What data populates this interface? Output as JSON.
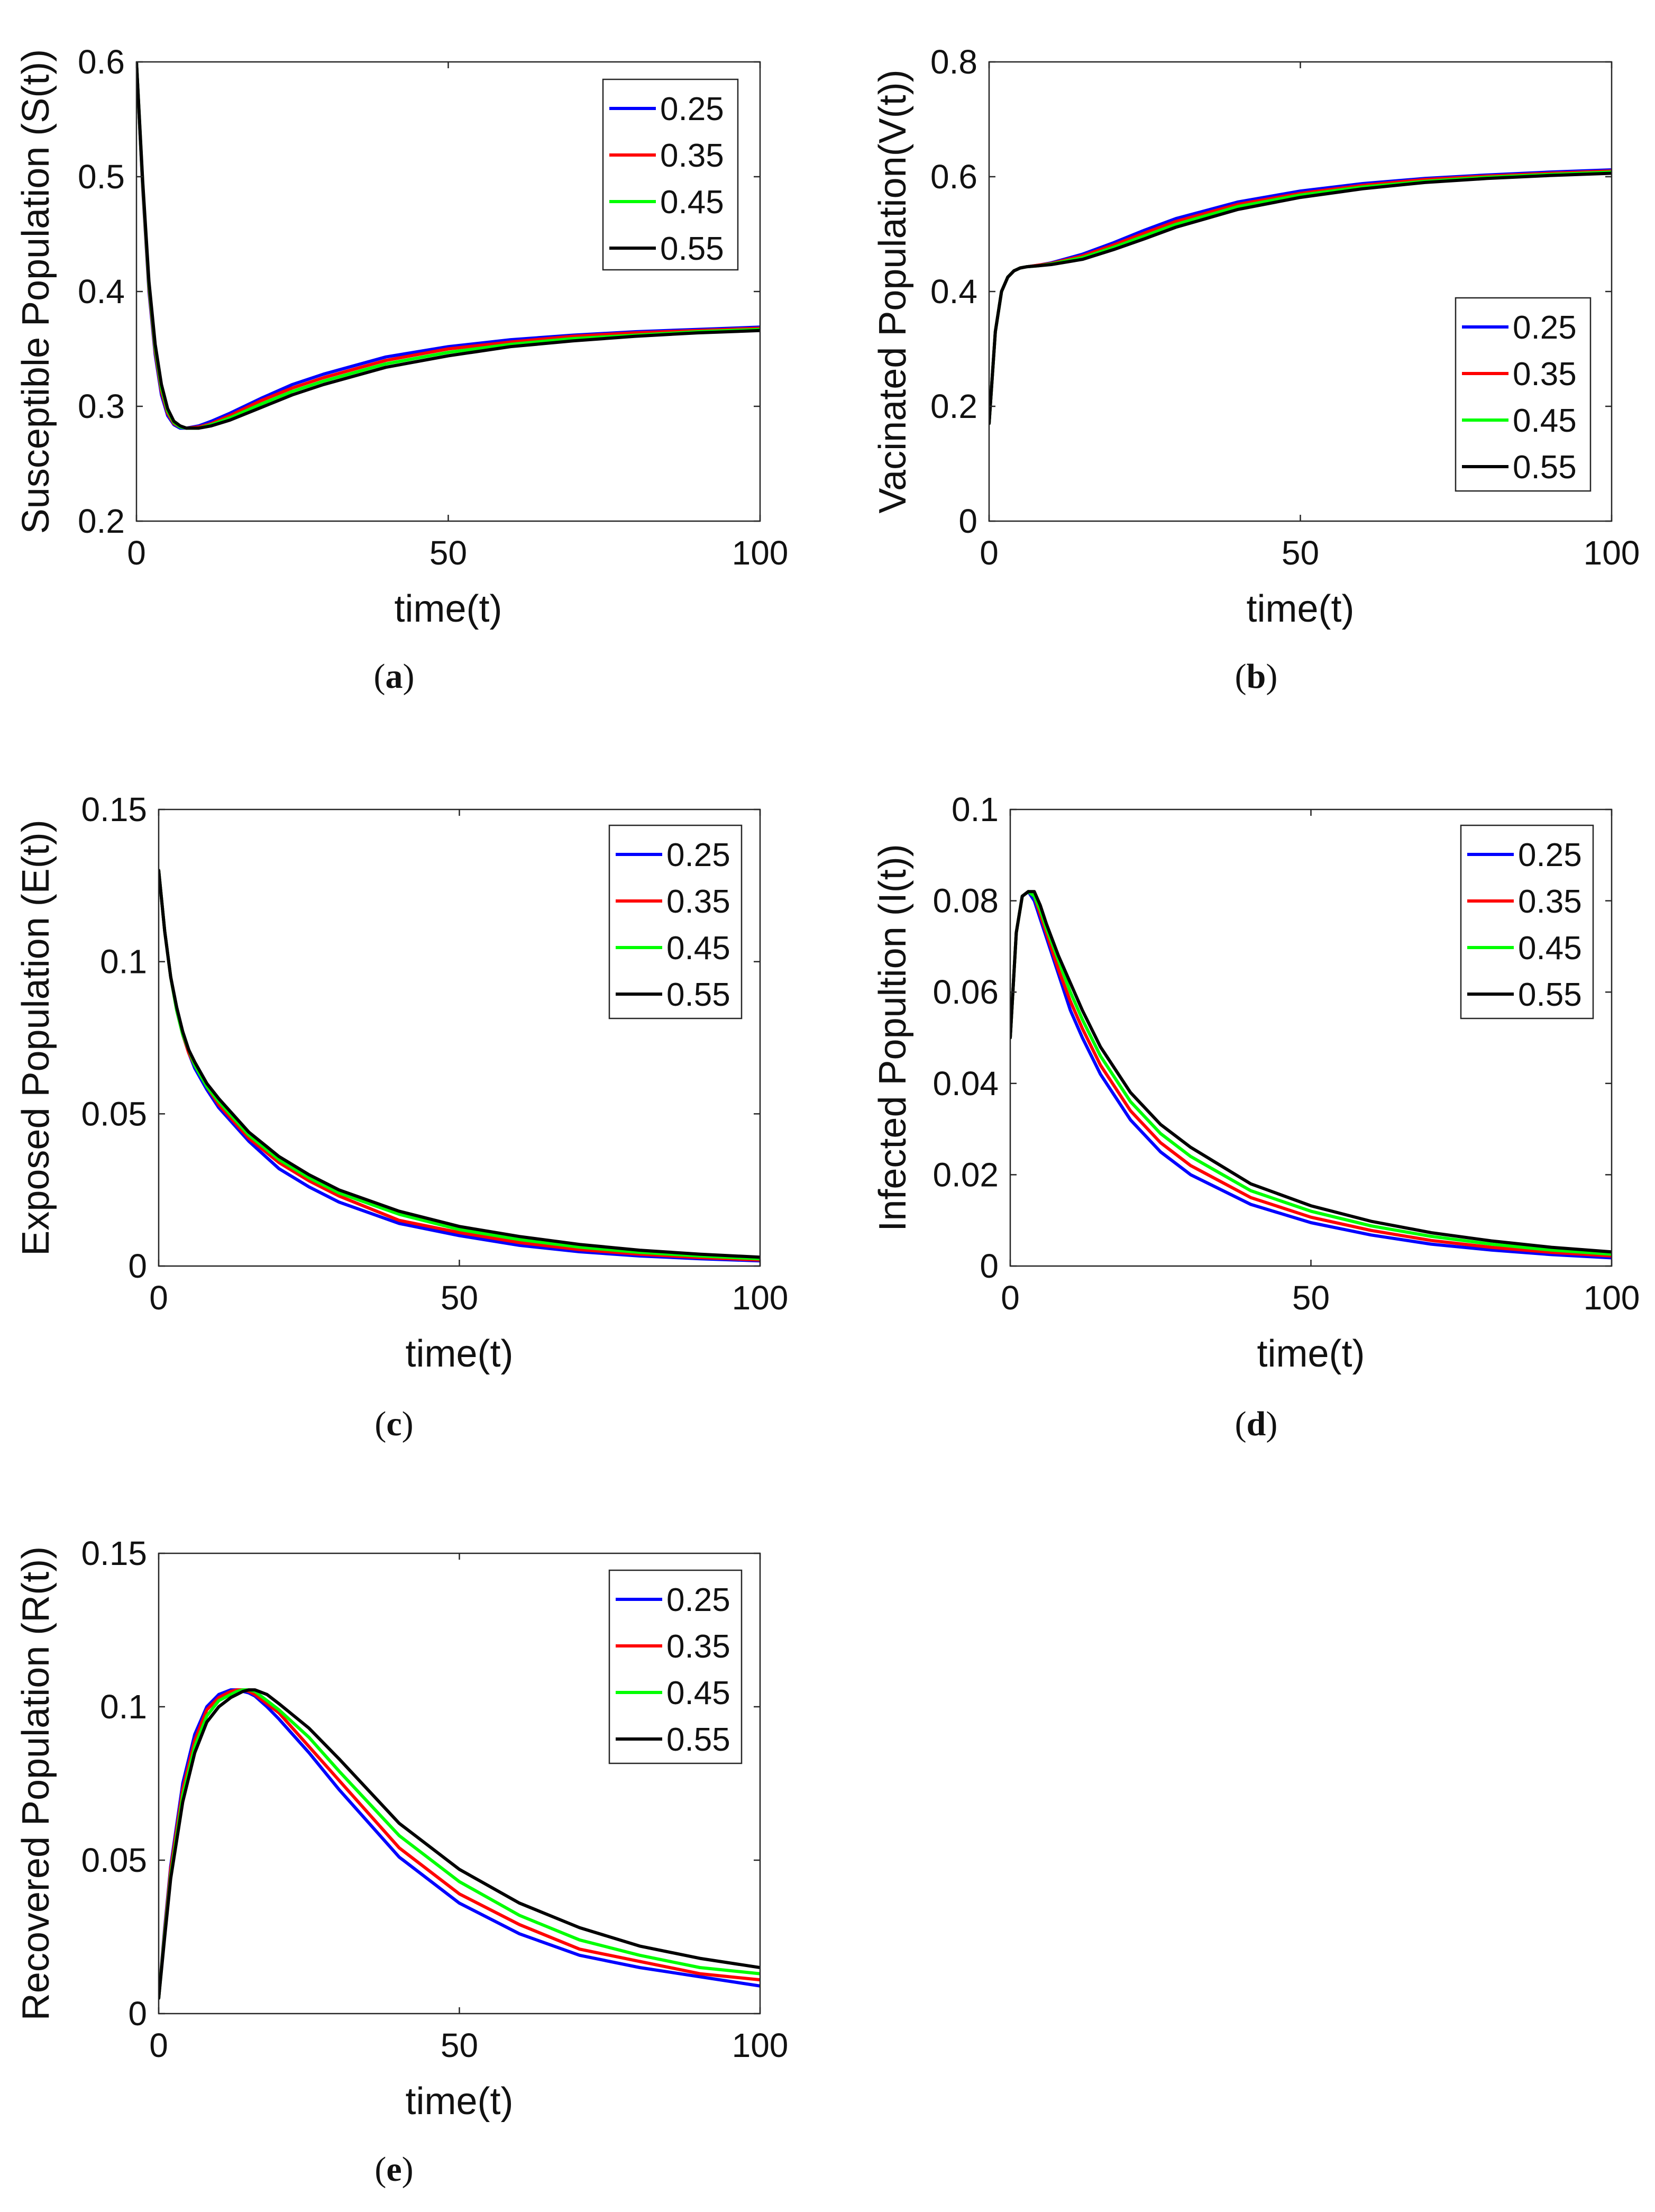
{
  "colors": {
    "blue": "#0000ff",
    "red": "#ff0000",
    "green": "#00ff00",
    "black": "#000000",
    "axis": "#262626"
  },
  "legend_labels": [
    "0.25",
    "0.35",
    "0.45",
    "0.55"
  ],
  "chart_data": [
    {
      "id": "a",
      "caption": "(a)",
      "type": "line",
      "title": "",
      "xlabel": "time(t)",
      "ylabel": "Susceptible Population (S(t))",
      "xlim": [
        0,
        100
      ],
      "ylim": [
        0.2,
        0.6
      ],
      "xticks": [
        0,
        50,
        100
      ],
      "xtick_labels": [
        "0",
        "50",
        "100"
      ],
      "yticks": [
        0.2,
        0.3,
        0.4,
        0.5,
        0.6
      ],
      "ytick_labels": [
        "0.2",
        "0.3",
        "0.4",
        "0.5",
        "0.6"
      ],
      "grid": false,
      "legend_position": "top-right",
      "x": [
        0,
        1,
        2,
        3,
        4,
        5,
        6,
        7,
        8,
        10,
        12,
        15,
        20,
        25,
        30,
        40,
        50,
        60,
        70,
        80,
        90,
        100
      ],
      "series": [
        {
          "name": "0.25",
          "values": [
            0.6,
            0.49,
            0.4,
            0.345,
            0.31,
            0.292,
            0.284,
            0.281,
            0.281,
            0.283,
            0.287,
            0.294,
            0.307,
            0.319,
            0.328,
            0.343,
            0.352,
            0.358,
            0.362,
            0.365,
            0.367,
            0.369
          ]
        },
        {
          "name": "0.35",
          "values": [
            0.6,
            0.492,
            0.403,
            0.348,
            0.313,
            0.294,
            0.285,
            0.282,
            0.281,
            0.282,
            0.285,
            0.292,
            0.305,
            0.316,
            0.325,
            0.34,
            0.35,
            0.356,
            0.361,
            0.364,
            0.366,
            0.368
          ]
        },
        {
          "name": "0.45",
          "values": [
            0.6,
            0.494,
            0.406,
            0.351,
            0.316,
            0.296,
            0.286,
            0.282,
            0.281,
            0.281,
            0.284,
            0.29,
            0.302,
            0.313,
            0.322,
            0.337,
            0.347,
            0.354,
            0.359,
            0.362,
            0.365,
            0.367
          ]
        },
        {
          "name": "0.55",
          "values": [
            0.6,
            0.496,
            0.409,
            0.354,
            0.319,
            0.298,
            0.287,
            0.283,
            0.281,
            0.281,
            0.283,
            0.288,
            0.299,
            0.31,
            0.319,
            0.334,
            0.344,
            0.352,
            0.357,
            0.361,
            0.364,
            0.366
          ]
        }
      ]
    },
    {
      "id": "b",
      "caption": "(b)",
      "type": "line",
      "title": "",
      "xlabel": "time(t)",
      "ylabel": "Vacinated Population(V(t))",
      "xlim": [
        0,
        100
      ],
      "ylim": [
        0,
        0.8
      ],
      "xticks": [
        0,
        50,
        100
      ],
      "xtick_labels": [
        "0",
        "50",
        "100"
      ],
      "yticks": [
        0,
        0.2,
        0.4,
        0.6,
        0.8
      ],
      "ytick_labels": [
        "0",
        "0.2",
        "0.4",
        "0.6",
        "0.8"
      ],
      "grid": false,
      "legend_position": "bottom-right",
      "x": [
        0,
        1,
        2,
        3,
        4,
        5,
        6,
        8,
        10,
        15,
        20,
        25,
        30,
        40,
        50,
        60,
        70,
        80,
        90,
        100
      ],
      "series": [
        {
          "name": "0.25",
          "values": [
            0.17,
            0.33,
            0.4,
            0.425,
            0.436,
            0.441,
            0.443,
            0.446,
            0.45,
            0.465,
            0.485,
            0.507,
            0.527,
            0.556,
            0.575,
            0.588,
            0.597,
            0.603,
            0.608,
            0.612
          ]
        },
        {
          "name": "0.35",
          "values": [
            0.17,
            0.33,
            0.4,
            0.425,
            0.436,
            0.441,
            0.443,
            0.446,
            0.449,
            0.462,
            0.481,
            0.502,
            0.522,
            0.552,
            0.571,
            0.585,
            0.595,
            0.601,
            0.606,
            0.61
          ]
        },
        {
          "name": "0.45",
          "values": [
            0.17,
            0.33,
            0.4,
            0.425,
            0.436,
            0.441,
            0.443,
            0.445,
            0.448,
            0.459,
            0.477,
            0.497,
            0.517,
            0.548,
            0.568,
            0.582,
            0.592,
            0.599,
            0.604,
            0.608
          ]
        },
        {
          "name": "0.55",
          "values": [
            0.17,
            0.33,
            0.4,
            0.425,
            0.436,
            0.441,
            0.443,
            0.445,
            0.447,
            0.456,
            0.473,
            0.492,
            0.512,
            0.543,
            0.564,
            0.579,
            0.59,
            0.597,
            0.602,
            0.606
          ]
        }
      ]
    },
    {
      "id": "c",
      "caption": "(c)",
      "type": "line",
      "title": "",
      "xlabel": "time(t)",
      "ylabel": "Exposed Population (E(t))",
      "xlim": [
        0,
        100
      ],
      "ylim": [
        0,
        0.15
      ],
      "xticks": [
        0,
        50,
        100
      ],
      "xtick_labels": [
        "0",
        "50",
        "100"
      ],
      "yticks": [
        0,
        0.05,
        0.1,
        0.15
      ],
      "ytick_labels": [
        "0",
        "0.05",
        "0.1",
        "0.15"
      ],
      "grid": false,
      "legend_position": "top-right",
      "x": [
        0,
        1,
        2,
        3,
        4,
        5,
        6,
        8,
        10,
        15,
        20,
        25,
        30,
        40,
        50,
        60,
        70,
        80,
        90,
        100
      ],
      "series": [
        {
          "name": "0.25",
          "values": [
            0.13,
            0.11,
            0.095,
            0.084,
            0.076,
            0.07,
            0.065,
            0.058,
            0.052,
            0.041,
            0.032,
            0.026,
            0.021,
            0.014,
            0.01,
            0.0068,
            0.0047,
            0.0033,
            0.0024,
            0.0017
          ]
        },
        {
          "name": "0.35",
          "values": [
            0.13,
            0.11,
            0.095,
            0.084,
            0.076,
            0.07,
            0.066,
            0.059,
            0.053,
            0.042,
            0.034,
            0.028,
            0.023,
            0.015,
            0.011,
            0.0077,
            0.0054,
            0.0039,
            0.0028,
            0.002
          ]
        },
        {
          "name": "0.45",
          "values": [
            0.13,
            0.11,
            0.095,
            0.084,
            0.076,
            0.071,
            0.066,
            0.059,
            0.054,
            0.043,
            0.035,
            0.029,
            0.024,
            0.017,
            0.012,
            0.0087,
            0.0062,
            0.0045,
            0.0033,
            0.0024
          ]
        },
        {
          "name": "0.55",
          "values": [
            0.13,
            0.11,
            0.095,
            0.085,
            0.077,
            0.071,
            0.067,
            0.06,
            0.055,
            0.044,
            0.036,
            0.03,
            0.025,
            0.018,
            0.013,
            0.0097,
            0.0071,
            0.0052,
            0.0039,
            0.0029
          ]
        }
      ]
    },
    {
      "id": "d",
      "caption": "(d)",
      "type": "line",
      "title": "",
      "xlabel": "time(t)",
      "ylabel": "Infected Popultion (I(t))",
      "xlim": [
        0,
        100
      ],
      "ylim": [
        0,
        0.1
      ],
      "xticks": [
        0,
        50,
        100
      ],
      "xtick_labels": [
        "0",
        "50",
        "100"
      ],
      "yticks": [
        0,
        0.02,
        0.04,
        0.06,
        0.08,
        0.1
      ],
      "ytick_labels": [
        "0",
        "0.02",
        "0.04",
        "0.06",
        "0.08",
        "0.1"
      ],
      "grid": false,
      "legend_position": "top-right",
      "x": [
        0,
        1,
        2,
        3,
        4,
        5,
        6,
        8,
        10,
        12,
        15,
        20,
        25,
        30,
        40,
        50,
        60,
        70,
        80,
        90,
        100
      ],
      "series": [
        {
          "name": "0.25",
          "values": [
            0.05,
            0.073,
            0.081,
            0.082,
            0.08,
            0.076,
            0.072,
            0.064,
            0.056,
            0.05,
            0.042,
            0.032,
            0.025,
            0.02,
            0.0135,
            0.0095,
            0.0068,
            0.0048,
            0.0035,
            0.0025,
            0.0018
          ]
        },
        {
          "name": "0.35",
          "values": [
            0.05,
            0.073,
            0.081,
            0.082,
            0.081,
            0.077,
            0.073,
            0.065,
            0.058,
            0.052,
            0.044,
            0.034,
            0.027,
            0.022,
            0.015,
            0.0107,
            0.0078,
            0.0056,
            0.0041,
            0.003,
            0.0022
          ]
        },
        {
          "name": "0.45",
          "values": [
            0.05,
            0.073,
            0.081,
            0.082,
            0.081,
            0.078,
            0.074,
            0.067,
            0.06,
            0.054,
            0.046,
            0.036,
            0.029,
            0.024,
            0.0165,
            0.012,
            0.0088,
            0.0065,
            0.0048,
            0.0035,
            0.0026
          ]
        },
        {
          "name": "0.55",
          "values": [
            0.05,
            0.073,
            0.081,
            0.082,
            0.082,
            0.079,
            0.075,
            0.068,
            0.062,
            0.056,
            0.048,
            0.038,
            0.031,
            0.026,
            0.018,
            0.0132,
            0.0098,
            0.0073,
            0.0055,
            0.0041,
            0.0031
          ]
        }
      ]
    },
    {
      "id": "e",
      "caption": "(e)",
      "type": "line",
      "title": "",
      "xlabel": "time(t)",
      "ylabel": "Recovered Population (R(t))",
      "xlim": [
        0,
        100
      ],
      "ylim": [
        0,
        0.15
      ],
      "xticks": [
        0,
        50,
        100
      ],
      "xtick_labels": [
        "0",
        "50",
        "100"
      ],
      "yticks": [
        0,
        0.05,
        0.1,
        0.15
      ],
      "ytick_labels": [
        "0",
        "0.05",
        "0.1",
        "0.15"
      ],
      "grid": false,
      "legend_position": "top-right",
      "x": [
        0,
        1,
        2,
        4,
        6,
        8,
        10,
        12,
        13,
        14,
        15,
        16,
        18,
        20,
        25,
        30,
        40,
        50,
        60,
        70,
        80,
        90,
        100
      ],
      "series": [
        {
          "name": "0.25",
          "values": [
            0.005,
            0.028,
            0.048,
            0.075,
            0.091,
            0.1,
            0.104,
            0.1055,
            0.1055,
            0.105,
            0.1045,
            0.1035,
            0.1,
            0.096,
            0.085,
            0.073,
            0.051,
            0.036,
            0.026,
            0.019,
            0.015,
            0.012,
            0.009
          ]
        },
        {
          "name": "0.35",
          "values": [
            0.005,
            0.027,
            0.047,
            0.073,
            0.089,
            0.099,
            0.103,
            0.105,
            0.1055,
            0.1055,
            0.105,
            0.104,
            0.101,
            0.098,
            0.087,
            0.076,
            0.054,
            0.039,
            0.029,
            0.021,
            0.017,
            0.013,
            0.011
          ]
        },
        {
          "name": "0.45",
          "values": [
            0.005,
            0.026,
            0.045,
            0.071,
            0.087,
            0.097,
            0.102,
            0.104,
            0.105,
            0.1055,
            0.1055,
            0.105,
            0.102,
            0.099,
            0.09,
            0.079,
            0.058,
            0.043,
            0.032,
            0.024,
            0.019,
            0.015,
            0.013
          ]
        },
        {
          "name": "0.55",
          "values": [
            0.005,
            0.025,
            0.044,
            0.069,
            0.085,
            0.095,
            0.1,
            0.103,
            0.104,
            0.105,
            0.1055,
            0.1055,
            0.104,
            0.101,
            0.093,
            0.083,
            0.062,
            0.047,
            0.036,
            0.028,
            0.022,
            0.018,
            0.015
          ]
        }
      ]
    }
  ]
}
